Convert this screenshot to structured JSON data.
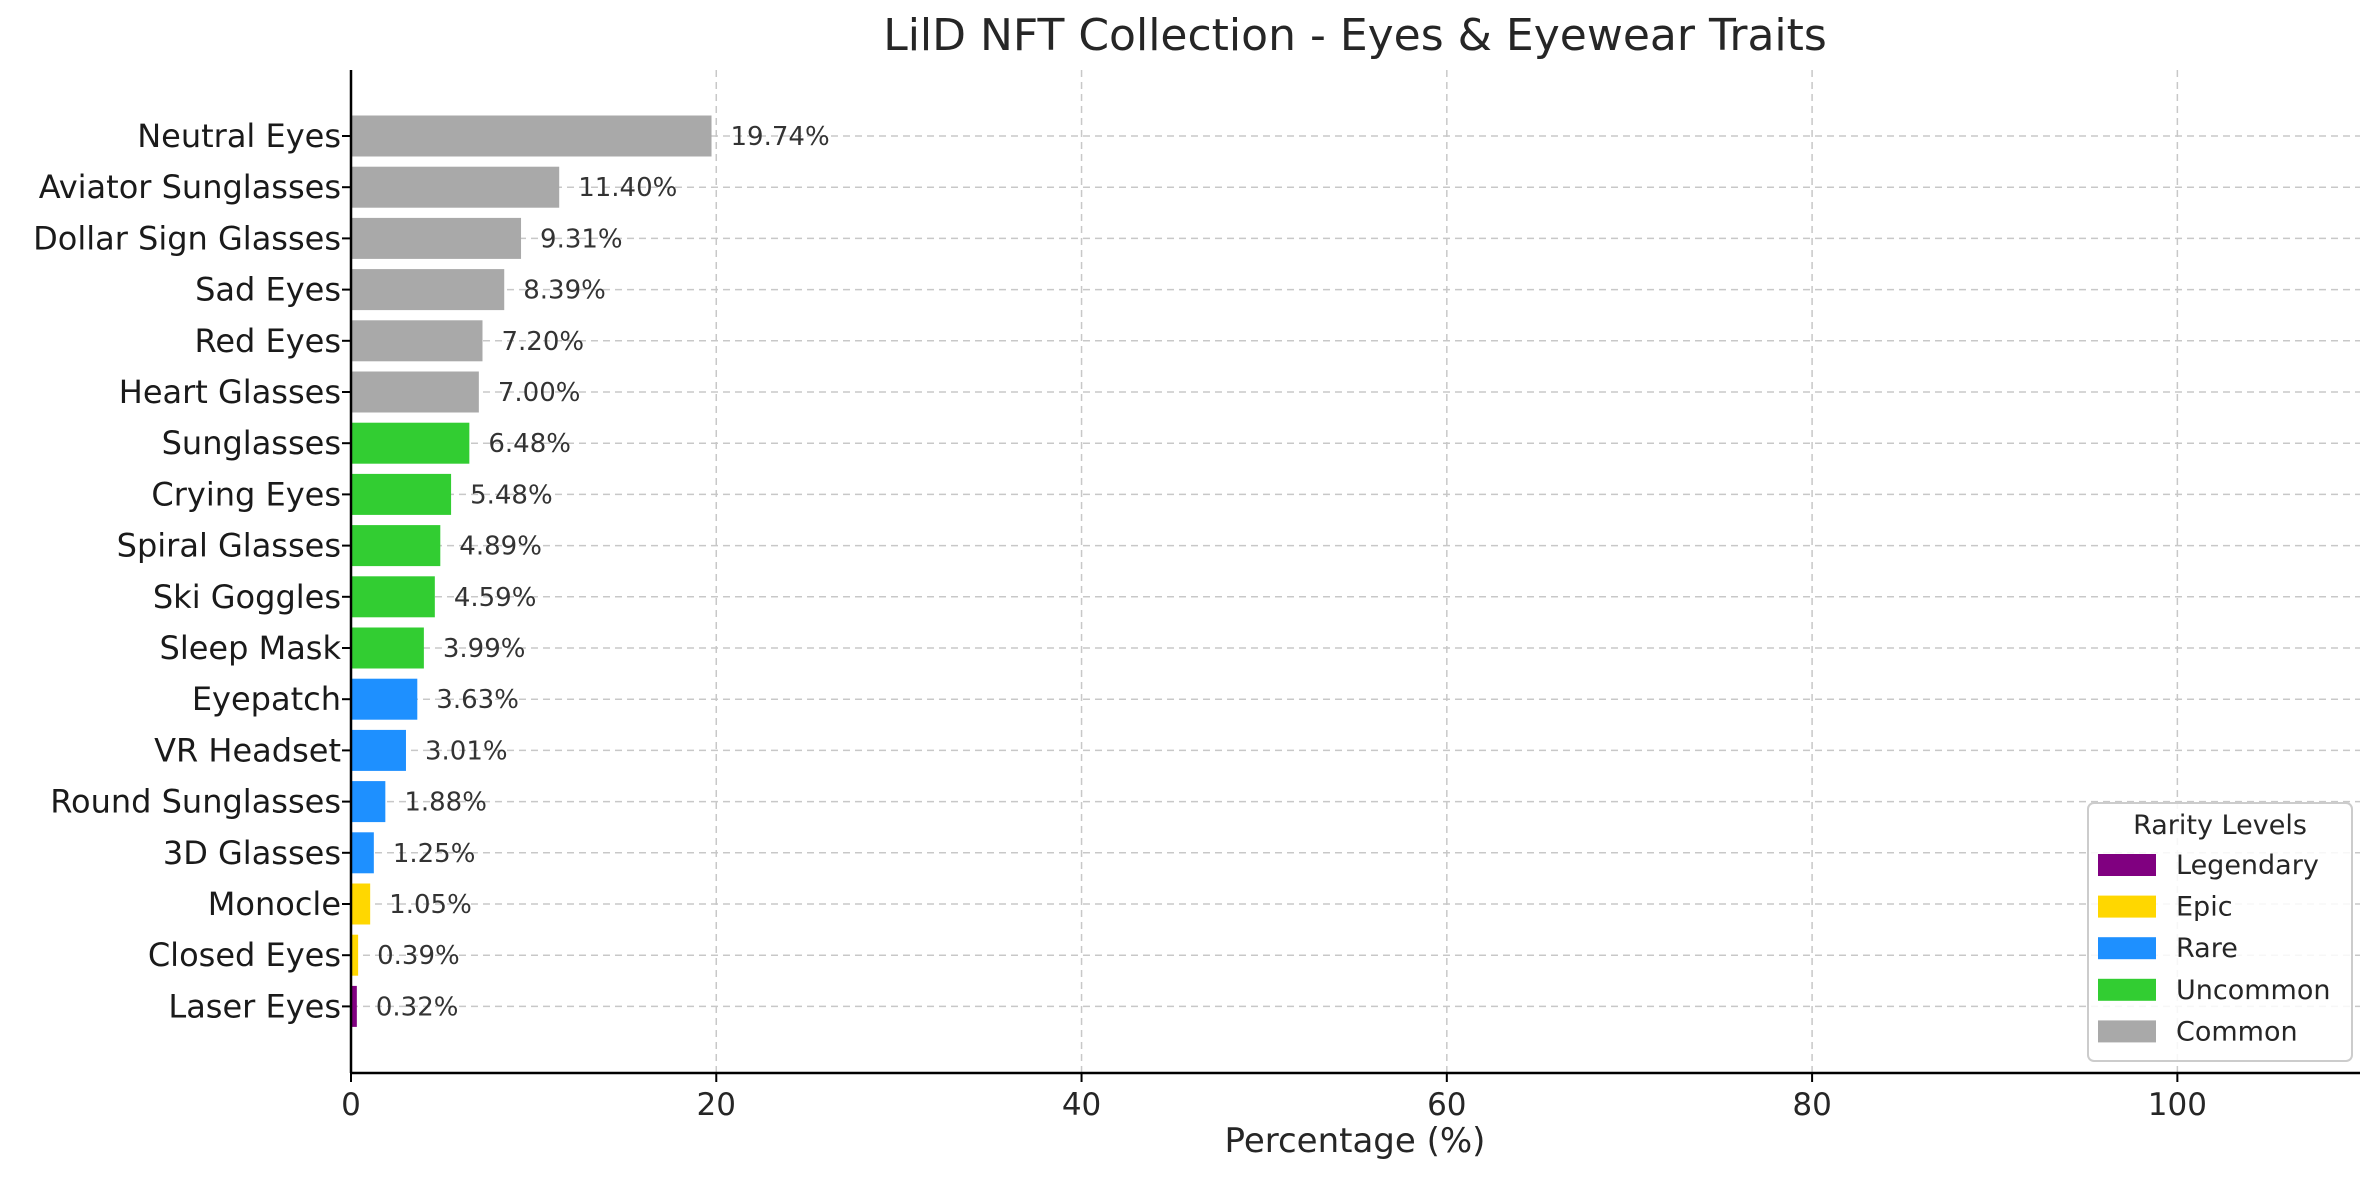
{
  "chart_data": {
    "type": "bar",
    "orientation": "horizontal",
    "title": "LilD NFT Collection - Eyes & Eyewear Traits",
    "xlabel": "Percentage (%)",
    "ylabel": "",
    "xlim": [
      0,
      110
    ],
    "xticks": [
      0,
      20,
      40,
      60,
      80,
      100
    ],
    "grid": true,
    "categories": [
      "Neutral Eyes",
      "Aviator Sunglasses",
      "Dollar Sign Glasses",
      "Sad Eyes",
      "Red Eyes",
      "Heart Glasses",
      "Sunglasses",
      "Crying Eyes",
      "Spiral Glasses",
      "Ski Goggles",
      "Sleep Mask",
      "Eyepatch",
      "VR Headset",
      "Round Sunglasses",
      "3D Glasses",
      "Monocle",
      "Closed Eyes",
      "Laser Eyes"
    ],
    "values": [
      19.74,
      11.4,
      9.31,
      8.39,
      7.2,
      7.0,
      6.48,
      5.48,
      4.89,
      4.59,
      3.99,
      3.63,
      3.01,
      1.88,
      1.25,
      1.05,
      0.39,
      0.32
    ],
    "value_labels": [
      "19.74%",
      "11.40%",
      "9.31%",
      "8.39%",
      "7.20%",
      "7.00%",
      "6.48%",
      "5.48%",
      "4.89%",
      "4.59%",
      "3.99%",
      "3.63%",
      "3.01%",
      "1.88%",
      "1.25%",
      "1.05%",
      "0.39%",
      "0.32%"
    ],
    "rarity": [
      "Common",
      "Common",
      "Common",
      "Common",
      "Common",
      "Common",
      "Uncommon",
      "Uncommon",
      "Uncommon",
      "Uncommon",
      "Uncommon",
      "Rare",
      "Rare",
      "Rare",
      "Rare",
      "Epic",
      "Epic",
      "Legendary"
    ],
    "legend": {
      "title": "Rarity Levels",
      "placement": "lower-right",
      "entries": [
        {
          "name": "Legendary",
          "color": "#800080"
        },
        {
          "name": "Epic",
          "color": "#FFD700"
        },
        {
          "name": "Rare",
          "color": "#1E90FF"
        },
        {
          "name": "Uncommon",
          "color": "#32CD32"
        },
        {
          "name": "Common",
          "color": "#A9A9A9"
        }
      ]
    }
  }
}
